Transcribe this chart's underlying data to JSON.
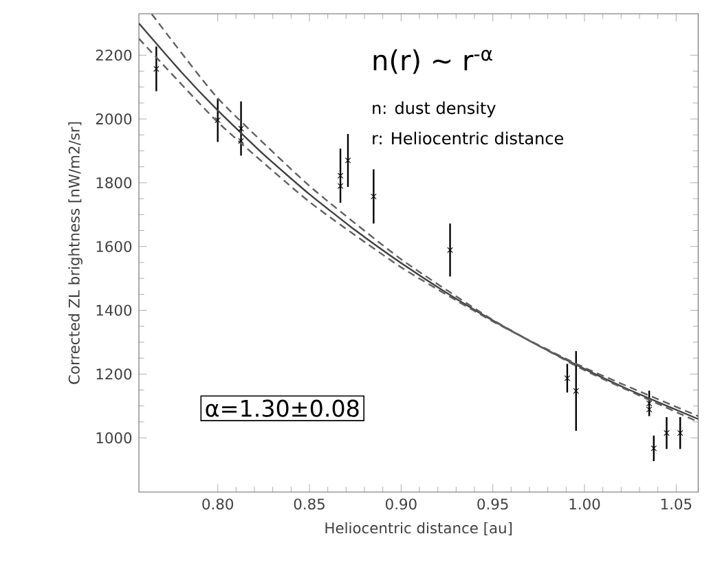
{
  "chart_data": {
    "type": "scatter",
    "xlabel": "Heliocentric distance [au]",
    "ylabel": "Corrected ZL brightness [nW/m2/sr]",
    "xlim": [
      0.757,
      1.062
    ],
    "ylim": [
      830,
      2330
    ],
    "xticks": [
      {
        "value": 0.8,
        "label": "0.80"
      },
      {
        "value": 0.85,
        "label": "0.85"
      },
      {
        "value": 0.9,
        "label": "0.90"
      },
      {
        "value": 0.95,
        "label": "0.95"
      },
      {
        "value": 1.0,
        "label": "1.00"
      },
      {
        "value": 1.05,
        "label": "1.05"
      }
    ],
    "yticks": [
      1000,
      1200,
      1400,
      1600,
      1800,
      2000,
      2200
    ],
    "grid": false,
    "marker": "cross",
    "annotations": [
      "n(r) ~ r$^{-α}$",
      "n: dust density",
      "r: Heliocentric distance",
      "α=1.30±0.08"
    ],
    "series": [
      {
        "color": "#000000",
        "x": [
          0.7665,
          0.8,
          0.8127,
          0.8127,
          0.8669,
          0.8669,
          0.871,
          0.885,
          0.9267,
          0.9906,
          0.9954,
          1.0353,
          1.0353,
          1.0378,
          1.0448,
          1.0522
        ],
        "values": [
          2157,
          1996,
          1970,
          1931,
          1822,
          1790,
          1870,
          1757,
          1589,
          1187,
          1147,
          1108,
          1089,
          967,
          1015,
          1015
        ],
        "errors": [
          70,
          68,
          85,
          null,
          85,
          null,
          83,
          85,
          83,
          45,
          125,
          40,
          null,
          40,
          50,
          50
        ]
      },
      {
        "type": "line",
        "color": "#404040",
        "marker": "none",
        "line_style": "solid",
        "x": [
          0.757,
          0.78,
          0.8,
          0.825,
          0.85,
          0.875,
          0.9,
          0.925,
          0.95,
          0.975,
          1.0,
          1.025,
          1.062
        ],
        "values": [
          2300,
          2148,
          2027,
          1889,
          1764,
          1651,
          1548,
          1454,
          1368,
          1289,
          1216,
          1149,
          1059
        ]
      },
      {
        "type": "line",
        "color": "#606060",
        "marker": "none",
        "line_style": "dashed",
        "x": [
          0.764,
          0.8,
          0.85,
          0.9,
          0.95,
          1.0,
          1.062
        ],
        "values": [
          2329,
          2065,
          1790,
          1560,
          1370,
          1212,
          1050
        ]
      },
      {
        "type": "line",
        "color": "#606060",
        "marker": "none",
        "line_style": "dashed",
        "x": [
          0.757,
          0.8,
          0.85,
          0.9,
          0.95,
          1.0,
          1.062
        ],
        "values": [
          2252,
          1990,
          1740,
          1535,
          1365,
          1220,
          1068
        ]
      }
    ]
  }
}
